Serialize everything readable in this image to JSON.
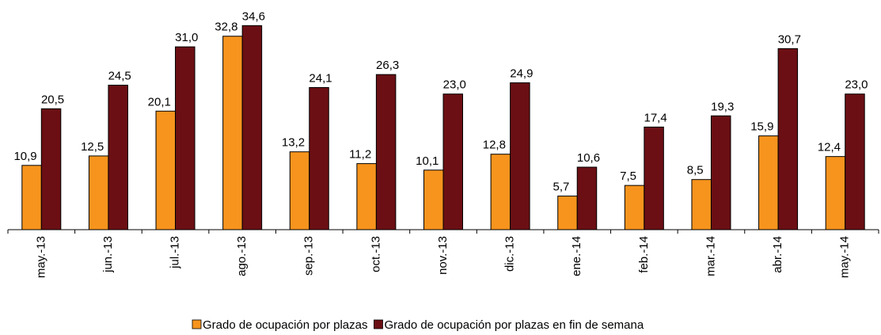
{
  "chart_data": {
    "type": "bar",
    "categories": [
      "may.-13",
      "jun.-13",
      "jul.-13",
      "ago.-13",
      "sep.-13",
      "oct.-13",
      "nov.-13",
      "dic.-13",
      "ene.-14",
      "feb.-14",
      "mar.-14",
      "abr.-14",
      "may.-14"
    ],
    "series": [
      {
        "name": "Grado de ocupación por plazas",
        "color": "#f7941d",
        "values": [
          10.9,
          12.5,
          20.1,
          32.8,
          13.2,
          11.2,
          10.1,
          12.8,
          5.7,
          7.5,
          8.5,
          15.9,
          12.4
        ],
        "value_labels": [
          "10,9",
          "12,5",
          "20,1",
          "32,8",
          "13,2",
          "11,2",
          "10,1",
          "12,8",
          "5,7",
          "7,5",
          "8,5",
          "15,9",
          "12,4"
        ]
      },
      {
        "name": "Grado de ocupación por plazas en fin de semana",
        "color": "#6b0f14",
        "values": [
          20.5,
          24.5,
          31.0,
          34.6,
          24.1,
          26.3,
          23.0,
          24.9,
          10.6,
          17.4,
          19.3,
          30.7,
          23.0
        ],
        "value_labels": [
          "20,5",
          "24,5",
          "31,0",
          "34,6",
          "24,1",
          "26,3",
          "23,0",
          "24,9",
          "10,6",
          "17,4",
          "19,3",
          "30,7",
          "23,0"
        ]
      }
    ],
    "ylim": [
      0,
      38
    ]
  }
}
